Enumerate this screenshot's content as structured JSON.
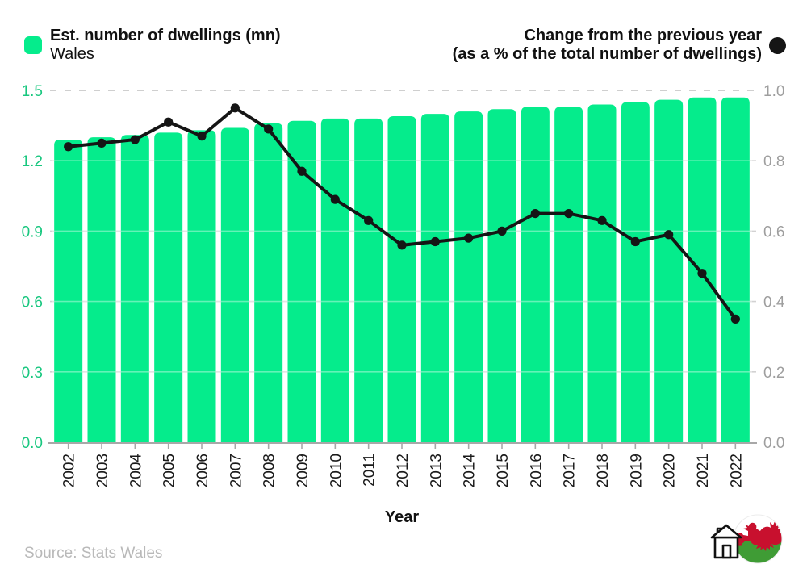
{
  "legend": {
    "left": {
      "title": "Est. number of dwellings (mn)",
      "subtitle": "Wales"
    },
    "right": {
      "line1": "Change from the previous year",
      "line2": "(as a % of the total number of dwellings)"
    }
  },
  "source_text": "Source: Stats Wales",
  "icons": {
    "footer_left": "house-icon",
    "footer_right": "welsh-dragon-flag-badge"
  },
  "colors": {
    "bar": "#05ec8c",
    "line": "#151515",
    "left_ticks": "#18c77f",
    "right_ticks": "#9e9e9e",
    "grid": "#d2d2d2",
    "grid_dashed": "#cfcfcf",
    "axis": "#a8a8a8",
    "x_ticks_text": "#1a1a1a",
    "source": "#b9b9b9",
    "flag_green": "#3f9c35",
    "flag_red": "#c8102e",
    "page_bg": "#ffffff"
  },
  "chart_data": {
    "type": "bar",
    "title": "",
    "xlabel": "Year",
    "categories": [
      "2002",
      "2003",
      "2004",
      "2005",
      "2006",
      "2007",
      "2008",
      "2009",
      "2010",
      "2011",
      "2012",
      "2013",
      "2014",
      "2015",
      "2016",
      "2017",
      "2018",
      "2019",
      "2020",
      "2021",
      "2022"
    ],
    "series": [
      {
        "name": "Est. number of dwellings (mn) — Wales",
        "type": "bar",
        "axis": "left",
        "values": [
          1.29,
          1.3,
          1.31,
          1.32,
          1.33,
          1.34,
          1.36,
          1.37,
          1.38,
          1.38,
          1.39,
          1.4,
          1.41,
          1.42,
          1.43,
          1.43,
          1.44,
          1.45,
          1.46,
          1.47,
          1.47
        ]
      },
      {
        "name": "Change from the previous year (as a % of the total number of dwellings)",
        "type": "line",
        "axis": "right",
        "values": [
          0.84,
          0.85,
          0.86,
          0.91,
          0.87,
          0.95,
          0.89,
          0.77,
          0.69,
          0.63,
          0.56,
          0.57,
          0.58,
          0.6,
          0.65,
          0.65,
          0.63,
          0.57,
          0.59,
          0.48,
          0.35
        ]
      }
    ],
    "left_axis": {
      "min": 0,
      "max": 1.5,
      "ticks": [
        0,
        0.3,
        0.6,
        0.9,
        1.2,
        1.5
      ],
      "labels": [
        "0.0",
        "0.3",
        "0.6",
        "0.9",
        "1.2",
        "1.5"
      ]
    },
    "right_axis": {
      "min": 0,
      "max": 1.0,
      "ticks": [
        0,
        0.2,
        0.4,
        0.6,
        0.8,
        1.0
      ],
      "labels": [
        "0.0",
        "0.2",
        "0.4",
        "0.6",
        "0.8",
        "1.0"
      ]
    },
    "grid": true,
    "top_gridline_dashed": true,
    "legend_position": "top"
  }
}
